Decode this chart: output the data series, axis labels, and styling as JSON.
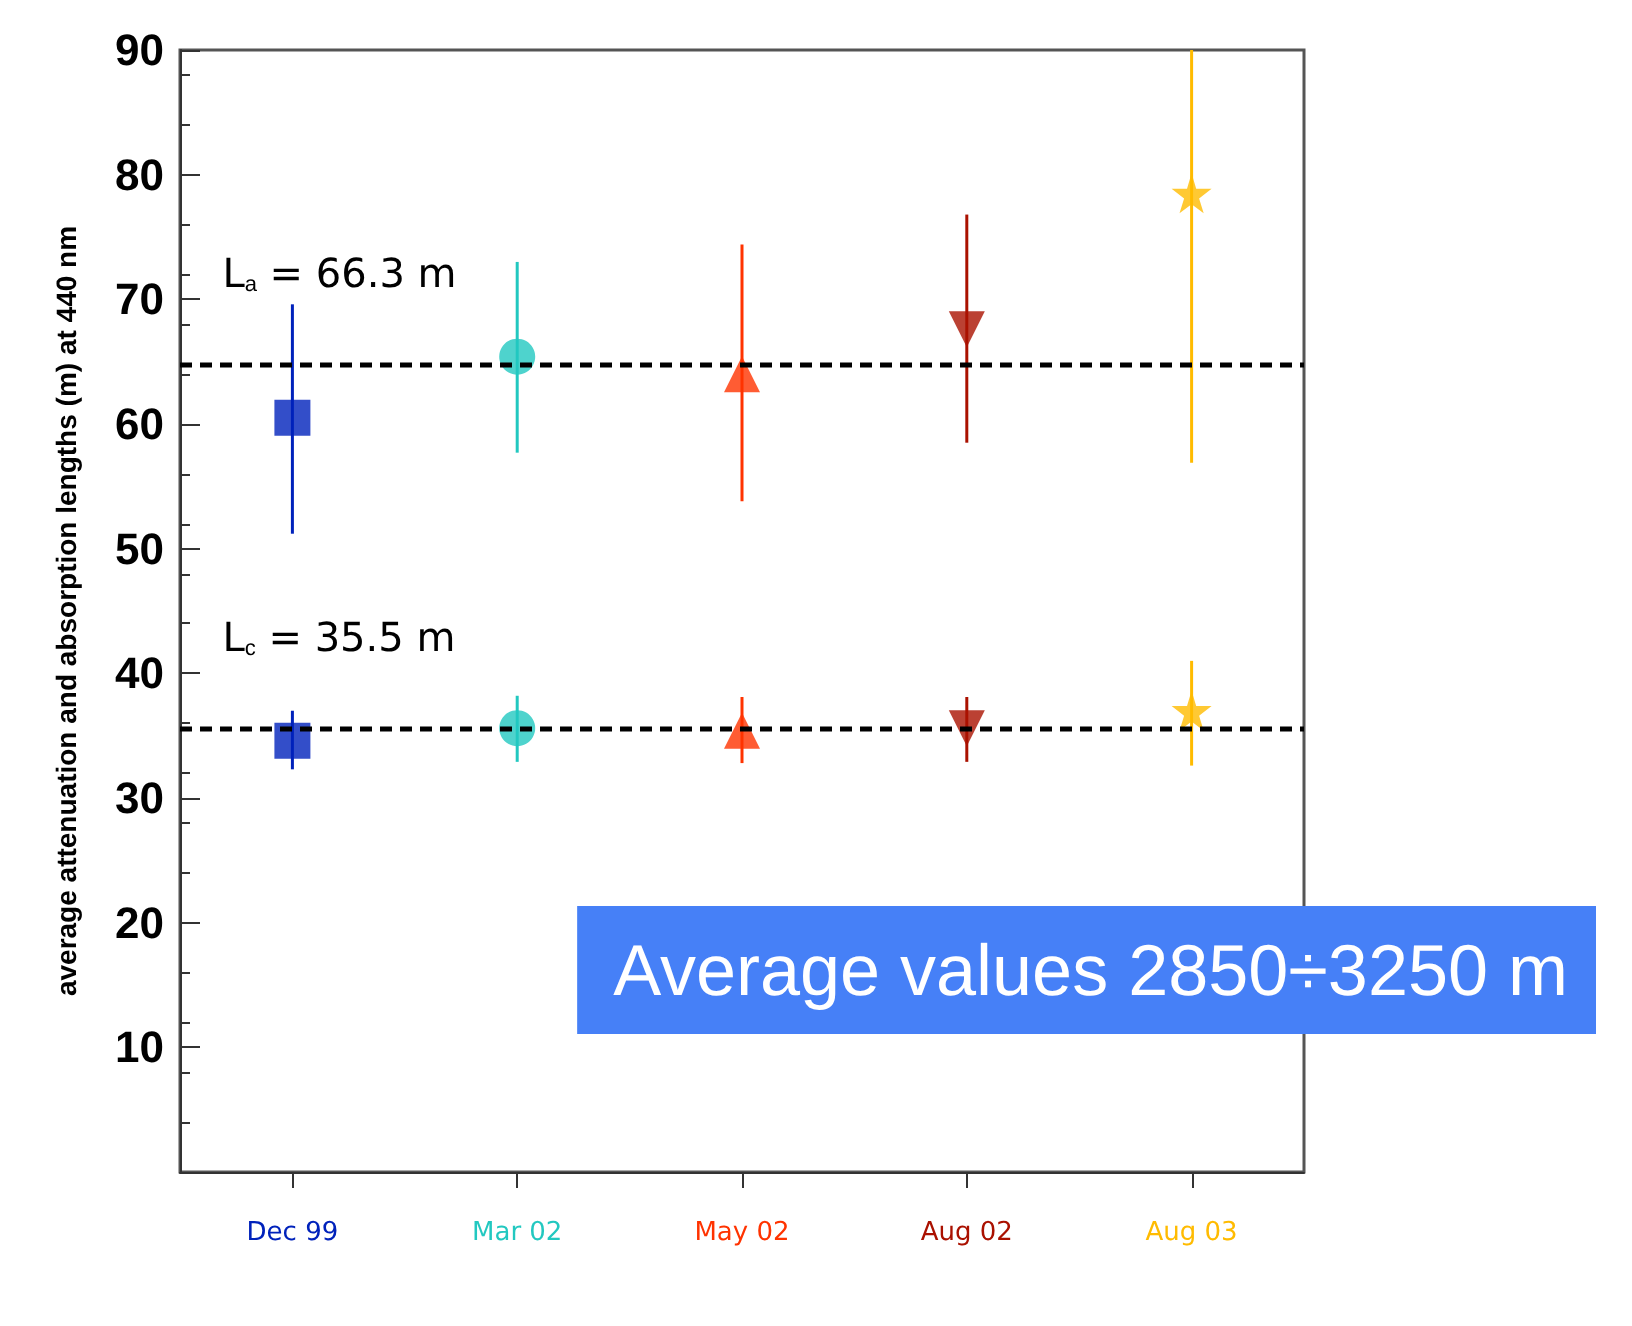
{
  "chart_data": {
    "type": "scatter",
    "ylabel": "average attenuation and absorption lengths (m) at 440 nm",
    "categories": [
      "Dec 99",
      "Mar 02",
      "May 02",
      "Aug 02",
      "Aug 03"
    ],
    "series": [
      {
        "x": [
          "Dec 99",
          "Dec 99"
        ],
        "values": [
          60.5,
          34.6
        ],
        "errors": [
          [
            51.2,
            69.6
          ],
          [
            32.3,
            37.0
          ]
        ],
        "color": "#0022bb",
        "marker": "square"
      },
      {
        "x": [
          "Mar 02",
          "Mar 02"
        ],
        "values": [
          65.4,
          35.6
        ],
        "errors": [
          [
            57.7,
            73.0
          ],
          [
            32.9,
            38.2
          ]
        ],
        "color": "#22c8c0",
        "marker": "circle"
      },
      {
        "x": [
          "May 02",
          "May 02"
        ],
        "values": [
          64.0,
          35.4
        ],
        "errors": [
          [
            53.8,
            74.4
          ],
          [
            32.8,
            38.1
          ]
        ],
        "color": "#ff3300",
        "marker": "triangle"
      },
      {
        "x": [
          "Aug 02",
          "Aug 02"
        ],
        "values": [
          67.6,
          35.6
        ],
        "errors": [
          [
            58.5,
            76.8
          ],
          [
            32.9,
            38.1
          ]
        ],
        "color": "#aa1100",
        "marker": "triangle-down"
      },
      {
        "x": [
          "Aug 03",
          "Aug 03"
        ],
        "values": [
          78.5,
          37.0
        ],
        "errors": [
          [
            56.9,
            90
          ],
          [
            32.6,
            41.0
          ]
        ],
        "color": "#ffbb00",
        "marker": "star"
      }
    ],
    "ylim": [
      0,
      90
    ],
    "yticks": [
      {
        "value": 0,
        "label": null
      },
      10,
      20,
      30,
      40,
      50,
      60,
      70,
      80,
      90
    ],
    "grid": false,
    "ref_lines": [
      {
        "axis": "y",
        "value": 64.7,
        "color": "#000000",
        "line_style": "dashed"
      },
      {
        "axis": "y",
        "value": 35.5,
        "color": "#000000",
        "line_style": "dashed"
      }
    ],
    "annotations": [
      "L$_{a}$ = 66.3 m",
      "L$_{c}$ = 35.5 m",
      "Average values 2850÷3250 m"
    ]
  }
}
